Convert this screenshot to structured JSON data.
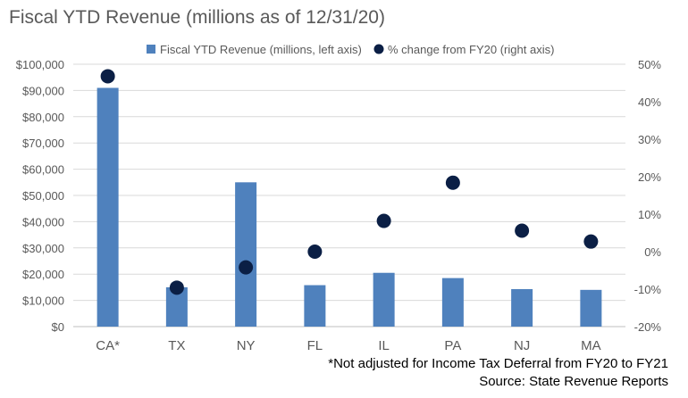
{
  "chart_data": {
    "type": "bar",
    "title": "Fiscal YTD Revenue (millions as of 12/31/20)",
    "categories": [
      "CA*",
      "TX",
      "NY",
      "FL",
      "IL",
      "PA",
      "NJ",
      "MA"
    ],
    "series": [
      {
        "name": "Fiscal YTD Revenue (millions, left axis)",
        "type": "bar",
        "axis": "left",
        "color": "#4f81bd",
        "values": [
          91000,
          15000,
          55000,
          15800,
          20500,
          18500,
          14300,
          14000
        ]
      },
      {
        "name": "% change from FY20 (right axis)",
        "type": "scatter",
        "axis": "right",
        "color": "#0b1f45",
        "values": [
          46.8,
          -9.6,
          -4.2,
          0.0,
          8.2,
          18.4,
          5.6,
          2.7
        ]
      }
    ],
    "left_axis": {
      "ylim": [
        0,
        100000
      ],
      "ticks": [
        "$0",
        "$10,000",
        "$20,000",
        "$30,000",
        "$40,000",
        "$50,000",
        "$60,000",
        "$70,000",
        "$80,000",
        "$90,000",
        "$100,000"
      ]
    },
    "right_axis": {
      "ylim": [
        -20,
        50
      ],
      "ticks": [
        "-20%",
        "-10%",
        "0%",
        "10%",
        "20%",
        "30%",
        "40%",
        "50%"
      ]
    },
    "grid": true,
    "legend_position": "top"
  },
  "footnotes": {
    "note": "*Not adjusted for Income Tax Deferral from FY20 to FY21",
    "source": "Source: State Revenue Reports"
  }
}
